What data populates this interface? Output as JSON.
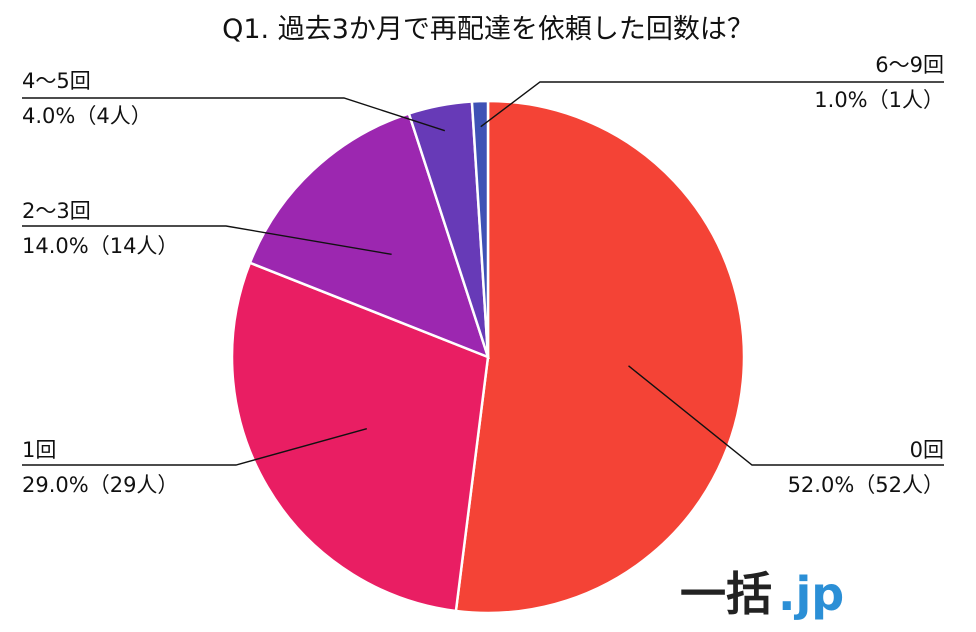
{
  "chart_data": {
    "type": "pie",
    "title": "Q1. 過去3か月で再配達を依頼した回数は？",
    "slices": [
      {
        "category": "0回",
        "percent_label": "52.0%（52人）",
        "value": 52.0,
        "count": 52,
        "color": "#f44336"
      },
      {
        "category": "1回",
        "percent_label": "29.0%（29人）",
        "value": 29.0,
        "count": 29,
        "color": "#e91e63"
      },
      {
        "category": "2〜3回",
        "percent_label": "14.0%（14人）",
        "value": 14.0,
        "count": 14,
        "color": "#9c27b0"
      },
      {
        "category": "4〜5回",
        "percent_label": "4.0%（4人）",
        "value": 4.0,
        "count": 4,
        "color": "#673ab7"
      },
      {
        "category": "6〜9回",
        "percent_label": "1.0%（1人）",
        "value": 1.0,
        "count": 1,
        "color": "#3f51b5"
      }
    ]
  },
  "brand": {
    "logo_text": "一括",
    "logo_suffix": ".jp",
    "logo_color": "#222222",
    "suffix_color": "#2b8fd6"
  }
}
